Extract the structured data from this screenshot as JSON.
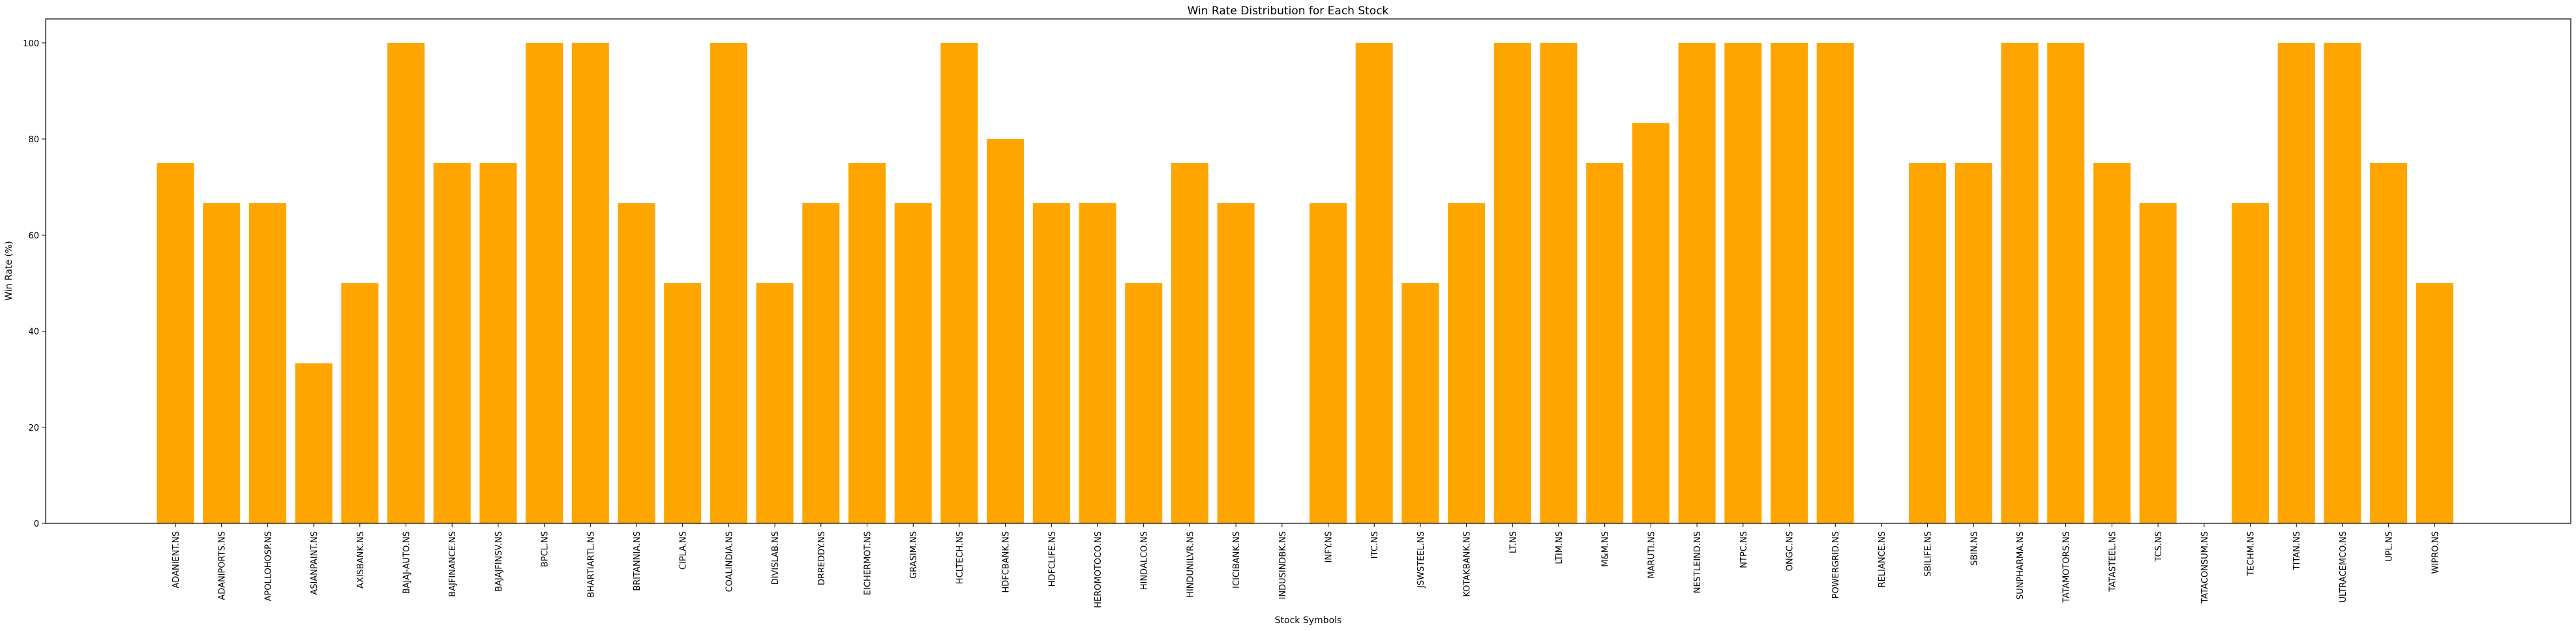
{
  "chart_data": {
    "type": "bar",
    "title": "Win Rate Distribution for Each Stock",
    "xlabel": "Stock Symbols",
    "ylabel": "Win Rate (%)",
    "ylim": [
      0,
      105
    ],
    "yticks": [
      "0",
      "20",
      "40",
      "60",
      "80",
      "100"
    ],
    "grid": false,
    "bar_color": "#ffa500",
    "categories": [
      "ADANIENT.NS",
      "ADANIPORTS.NS",
      "APOLLOHOSP.NS",
      "ASIANPAINT.NS",
      "AXISBANK.NS",
      "BAJAJ-AUTO.NS",
      "BAJFINANCE.NS",
      "BAJAJFINSV.NS",
      "BPCL.NS",
      "BHARTIARTL.NS",
      "BRITANNIA.NS",
      "CIPLA.NS",
      "COALINDIA.NS",
      "DIVISLAB.NS",
      "DRREDDY.NS",
      "EICHERMOT.NS",
      "GRASIM.NS",
      "HCLTECH.NS",
      "HDFCBANK.NS",
      "HDFCLIFE.NS",
      "HEROMOTOCO.NS",
      "HINDALCO.NS",
      "HINDUNILVR.NS",
      "ICICIBANK.NS",
      "INDUSINDBK.NS",
      "INFY.NS",
      "ITC.NS",
      "JSWSTEEL.NS",
      "KOTAKBANK.NS",
      "LT.NS",
      "LTIM.NS",
      "M&M.NS",
      "MARUTI.NS",
      "NESTLEIND.NS",
      "NTPC.NS",
      "ONGC.NS",
      "POWERGRID.NS",
      "RELIANCE.NS",
      "SBILIFE.NS",
      "SBIN.NS",
      "SUNPHARMA.NS",
      "TATAMOTORS.NS",
      "TATASTEEL.NS",
      "TCS.NS",
      "TATACONSUM.NS",
      "TECHM.NS",
      "TITAN.NS",
      "ULTRACEMCO.NS",
      "UPL.NS",
      "WIPRO.NS"
    ],
    "values": [
      75,
      66.67,
      66.67,
      33.33,
      50,
      100,
      75,
      75,
      100,
      100,
      66.67,
      50,
      100,
      50,
      66.67,
      75,
      66.67,
      100,
      80,
      66.67,
      66.67,
      50,
      75,
      66.67,
      0,
      66.67,
      100,
      50,
      66.67,
      100,
      100,
      75,
      83.33,
      100,
      100,
      100,
      100,
      0,
      75,
      75,
      100,
      100,
      75,
      66.67,
      0,
      66.67,
      100,
      100,
      75,
      50
    ]
  }
}
